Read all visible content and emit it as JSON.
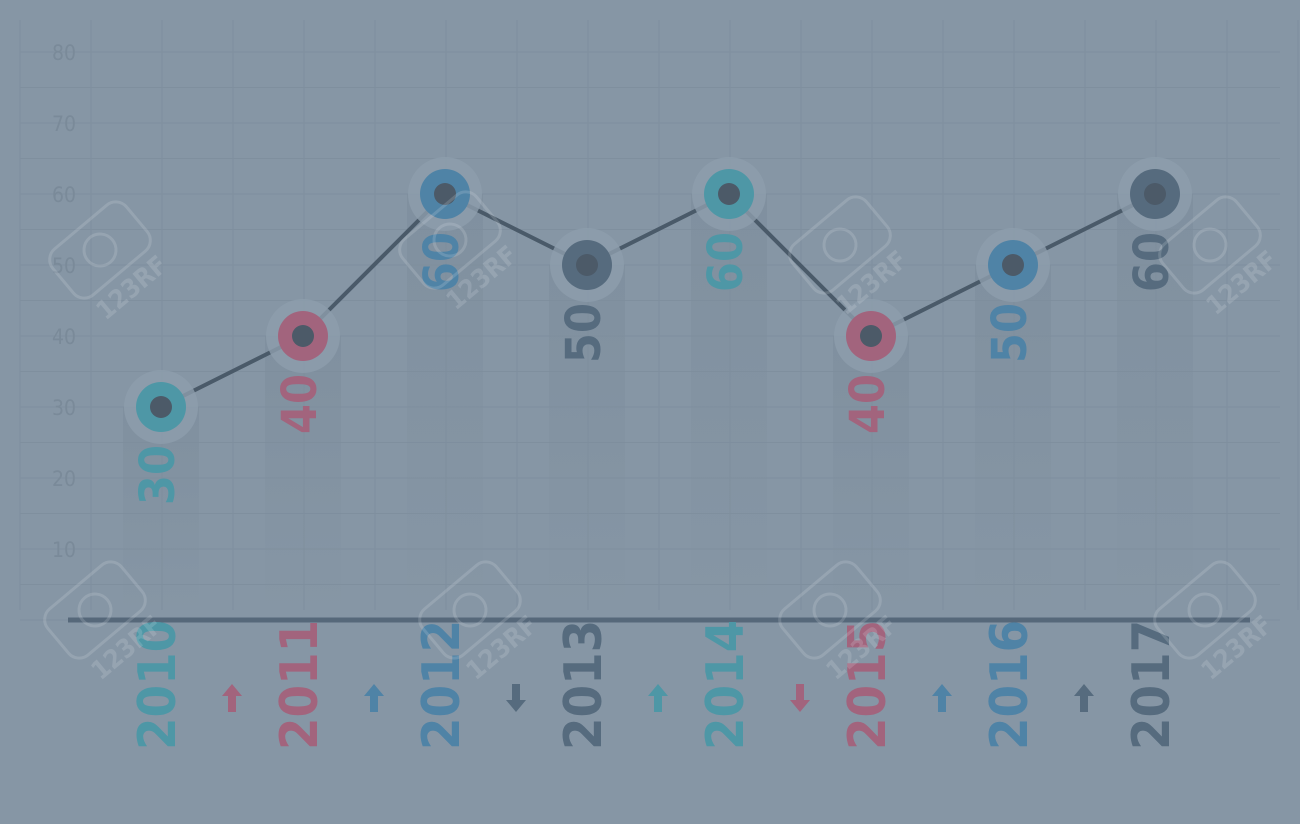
{
  "chart_data": {
    "type": "line",
    "categories": [
      "2010",
      "2011",
      "2012",
      "2013",
      "2014",
      "2015",
      "2016",
      "2017"
    ],
    "values": [
      30,
      40,
      60,
      50,
      60,
      40,
      50,
      60
    ],
    "value_labels": [
      "30",
      "40",
      "60",
      "50",
      "60",
      "40",
      "50",
      "60"
    ],
    "y_ticks": [
      "10",
      "20",
      "30",
      "40",
      "50",
      "60",
      "70",
      "80"
    ],
    "ylim": [
      0,
      80
    ],
    "grid": true,
    "trend": [
      "up",
      "up",
      "down",
      "up",
      "down",
      "up",
      "up"
    ],
    "point_colors": [
      "#4e97a6",
      "#a2647d",
      "#4f83a6",
      "#566b7e",
      "#4e97a6",
      "#a2647d",
      "#4f83a6",
      "#566b7e"
    ],
    "colors": {
      "background": "#8696a5",
      "line": "#4a5a69",
      "baseline": "#56687a",
      "grid": "#7f8f9e",
      "tick_label": "#7a8a99",
      "point_center": "#4c5a68"
    },
    "watermark": "123RF"
  }
}
